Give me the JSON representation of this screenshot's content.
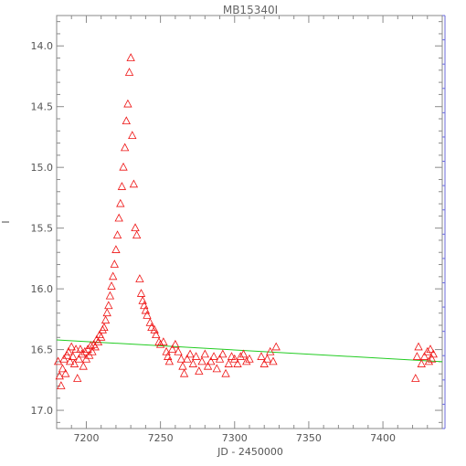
{
  "chart_data": {
    "type": "scatter",
    "title": "MB15340I",
    "xlabel": "JD - 2450000",
    "ylabel": "I",
    "xlim": [
      7180,
      7440
    ],
    "ylim": [
      17.15,
      13.75
    ],
    "y_inverted": true,
    "grid": false,
    "x_ticks": [
      "7200",
      "7250",
      "7300",
      "7350",
      "7400"
    ],
    "y_ticks": [
      "14.0",
      "14.5",
      "15.0",
      "15.5",
      "16.0",
      "16.5",
      "17.0"
    ],
    "marker": "open-triangle",
    "series": [
      {
        "color": "#ee1111",
        "points": [
          [
            7181,
            16.6
          ],
          [
            7182,
            16.72
          ],
          [
            7183,
            16.8
          ],
          [
            7184,
            16.66
          ],
          [
            7185,
            16.58
          ],
          [
            7186,
            16.7
          ],
          [
            7187,
            16.55
          ],
          [
            7188,
            16.52
          ],
          [
            7189,
            16.6
          ],
          [
            7190,
            16.48
          ],
          [
            7191,
            16.56
          ],
          [
            7192,
            16.62
          ],
          [
            7193,
            16.5
          ],
          [
            7194,
            16.74
          ],
          [
            7195,
            16.58
          ],
          [
            7196,
            16.5
          ],
          [
            7197,
            16.54
          ],
          [
            7198,
            16.64
          ],
          [
            7199,
            16.52
          ],
          [
            7200,
            16.58
          ],
          [
            7201,
            16.5
          ],
          [
            7202,
            16.55
          ],
          [
            7203,
            16.47
          ],
          [
            7204,
            16.52
          ],
          [
            7205,
            16.46
          ],
          [
            7206,
            16.48
          ],
          [
            7207,
            16.42
          ],
          [
            7208,
            16.44
          ],
          [
            7209,
            16.38
          ],
          [
            7210,
            16.4
          ],
          [
            7211,
            16.34
          ],
          [
            7212,
            16.32
          ],
          [
            7213,
            16.26
          ],
          [
            7214,
            16.2
          ],
          [
            7215,
            16.14
          ],
          [
            7216,
            16.06
          ],
          [
            7217,
            15.98
          ],
          [
            7218,
            15.9
          ],
          [
            7219,
            15.8
          ],
          [
            7220,
            15.68
          ],
          [
            7221,
            15.56
          ],
          [
            7222,
            15.42
          ],
          [
            7223,
            15.3
          ],
          [
            7224,
            15.16
          ],
          [
            7225,
            15.0
          ],
          [
            7226,
            14.84
          ],
          [
            7227,
            14.62
          ],
          [
            7228,
            14.48
          ],
          [
            7229,
            14.22
          ],
          [
            7230,
            14.1
          ],
          [
            7231,
            14.74
          ],
          [
            7232,
            15.14
          ],
          [
            7233,
            15.5
          ],
          [
            7234,
            15.56
          ],
          [
            7236,
            15.92
          ],
          [
            7237,
            16.04
          ],
          [
            7238,
            16.1
          ],
          [
            7239,
            16.14
          ],
          [
            7240,
            16.18
          ],
          [
            7241,
            16.22
          ],
          [
            7243,
            16.28
          ],
          [
            7244,
            16.32
          ],
          [
            7246,
            16.34
          ],
          [
            7247,
            16.38
          ],
          [
            7249,
            16.44
          ],
          [
            7250,
            16.46
          ],
          [
            7252,
            16.44
          ],
          [
            7254,
            16.52
          ],
          [
            7255,
            16.56
          ],
          [
            7256,
            16.6
          ],
          [
            7258,
            16.5
          ],
          [
            7260,
            16.46
          ],
          [
            7262,
            16.52
          ],
          [
            7264,
            16.58
          ],
          [
            7265,
            16.64
          ],
          [
            7266,
            16.7
          ],
          [
            7268,
            16.58
          ],
          [
            7270,
            16.54
          ],
          [
            7272,
            16.62
          ],
          [
            7274,
            16.56
          ],
          [
            7276,
            16.68
          ],
          [
            7278,
            16.6
          ],
          [
            7280,
            16.54
          ],
          [
            7282,
            16.64
          ],
          [
            7284,
            16.6
          ],
          [
            7286,
            16.56
          ],
          [
            7288,
            16.66
          ],
          [
            7290,
            16.58
          ],
          [
            7292,
            16.54
          ],
          [
            7294,
            16.7
          ],
          [
            7296,
            16.62
          ],
          [
            7298,
            16.56
          ],
          [
            7300,
            16.58
          ],
          [
            7302,
            16.62
          ],
          [
            7304,
            16.56
          ],
          [
            7306,
            16.54
          ],
          [
            7308,
            16.6
          ],
          [
            7310,
            16.58
          ],
          [
            7318,
            16.56
          ],
          [
            7320,
            16.62
          ],
          [
            7322,
            16.58
          ],
          [
            7324,
            16.52
          ],
          [
            7326,
            16.6
          ],
          [
            7328,
            16.48
          ],
          [
            7422,
            16.74
          ],
          [
            7423,
            16.56
          ],
          [
            7424,
            16.48
          ],
          [
            7426,
            16.62
          ],
          [
            7428,
            16.56
          ],
          [
            7430,
            16.52
          ],
          [
            7431,
            16.6
          ],
          [
            7432,
            16.5
          ],
          [
            7433,
            16.58
          ],
          [
            7434,
            16.54
          ]
        ]
      }
    ],
    "fit_line": {
      "color": "#22cc22",
      "x": [
        7180,
        7440
      ],
      "y": [
        16.42,
        16.6
      ]
    }
  }
}
